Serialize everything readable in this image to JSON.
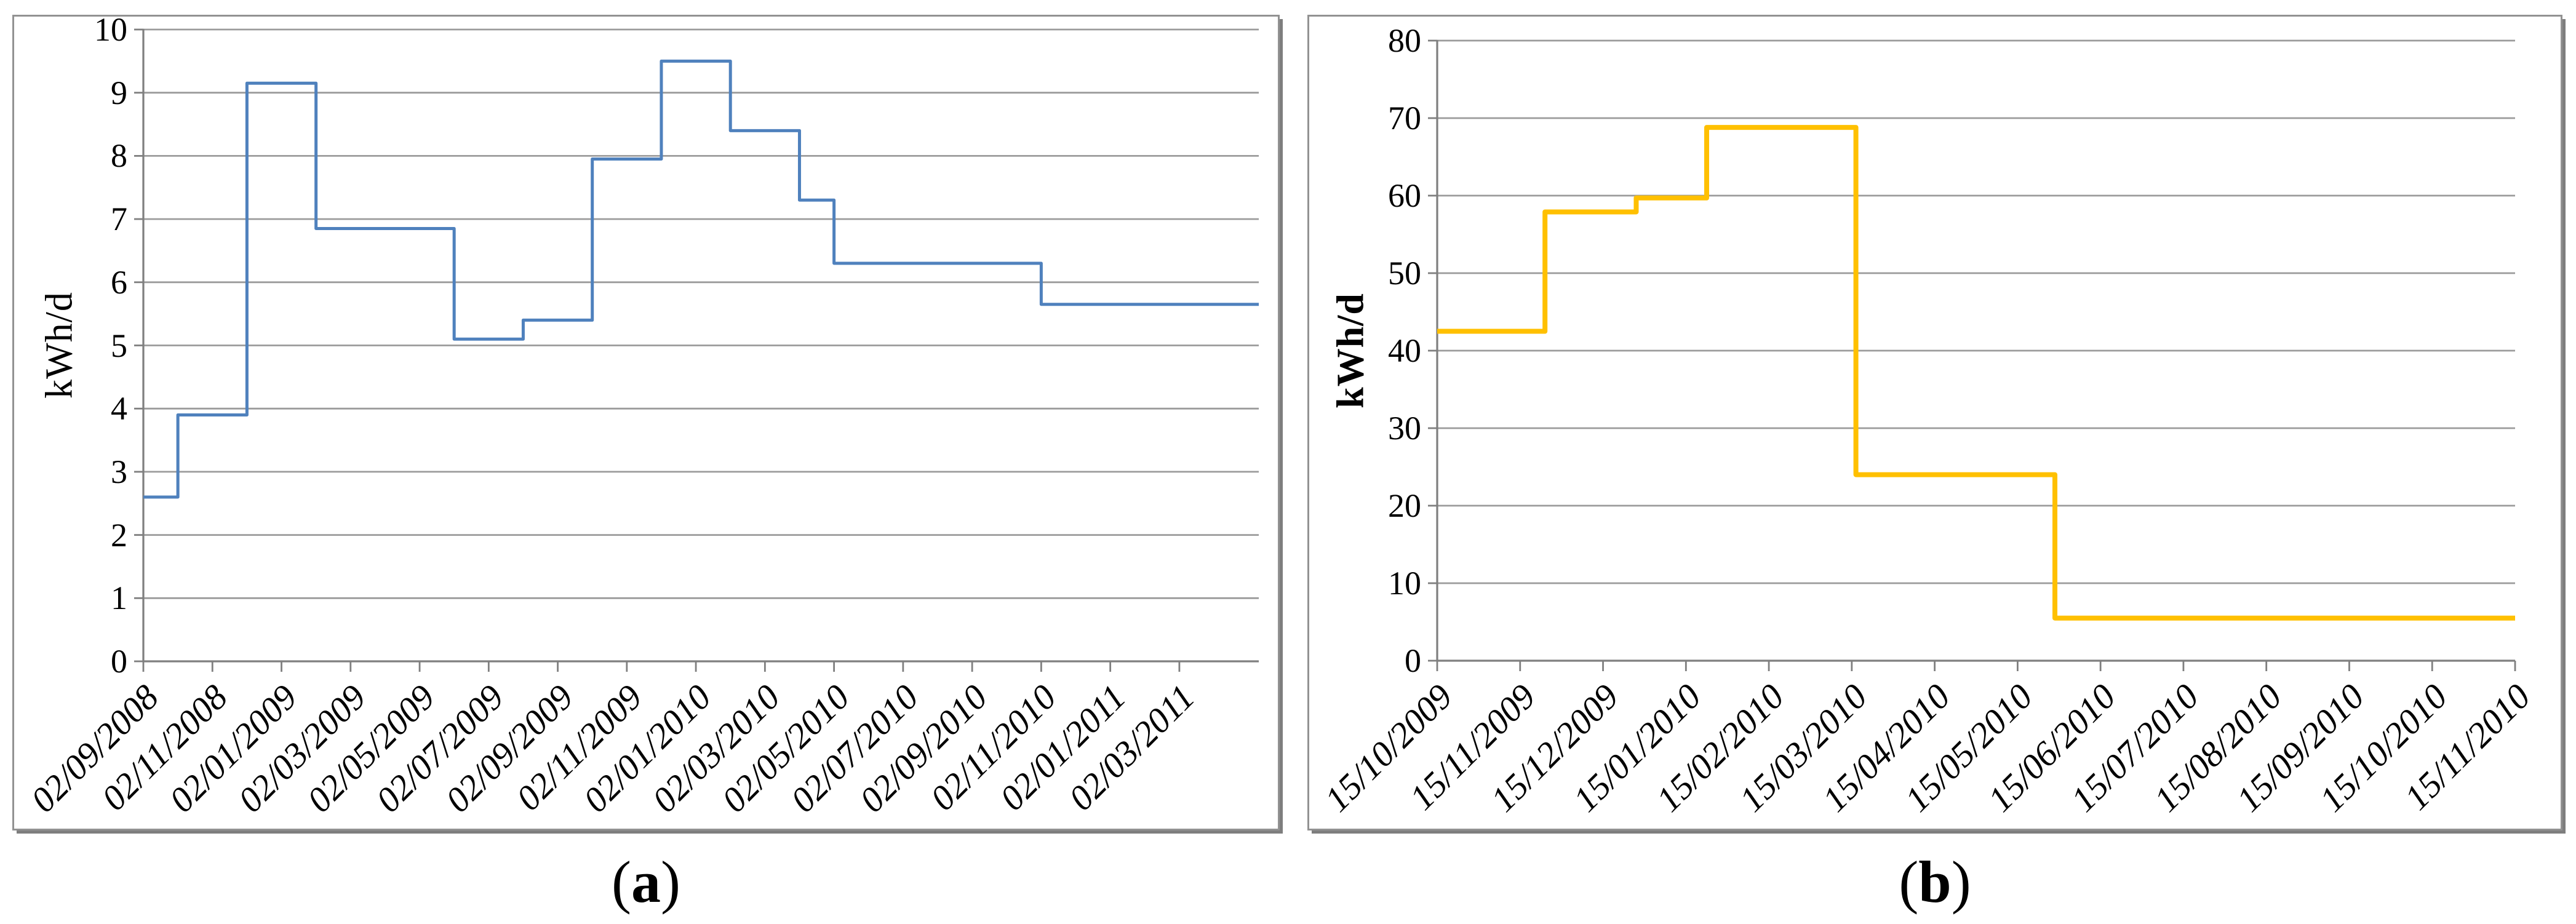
{
  "page": {
    "background": "#ffffff"
  },
  "captions": {
    "a": {
      "open": "(",
      "letter": "a",
      "close": ")"
    },
    "b": {
      "open": "(",
      "letter": "b",
      "close": ")"
    }
  },
  "chart_data": [
    {
      "id": "a",
      "type": "line",
      "subtype": "step",
      "title": "",
      "xlabel": "",
      "ylabel": "kWh/d",
      "ylabel_bold": false,
      "series_color": "#4F81BD",
      "line_width": 5,
      "grid": true,
      "grid_color": "#9b9b9b",
      "axis_color": "#7f7f7f",
      "legend": "none",
      "ylim": [
        0,
        10
      ],
      "yticks": [
        0,
        1,
        2,
        3,
        4,
        5,
        6,
        7,
        8,
        9,
        10
      ],
      "ytick_labels": [
        "0",
        "1",
        "2",
        "3",
        "4",
        "5",
        "6",
        "7",
        "8",
        "9",
        "10"
      ],
      "x_tick_labels": [
        "02/09/2008",
        "02/11/2008",
        "02/01/2009",
        "02/03/2009",
        "02/05/2009",
        "02/07/2009",
        "02/09/2009",
        "02/11/2009",
        "02/01/2010",
        "02/03/2010",
        "02/05/2010",
        "02/07/2010",
        "02/09/2010",
        "02/11/2010",
        "02/01/2011",
        "02/03/2011"
      ],
      "x_tick_months": [
        0,
        2,
        4,
        6,
        8,
        10,
        12,
        14,
        16,
        18,
        20,
        22,
        24,
        26,
        28,
        30
      ],
      "x_axis_span_months": 32.3,
      "segments": [
        {
          "start_month": 0,
          "date": "02/09/2008",
          "value": 2.6
        },
        {
          "start_month": 1,
          "date": "02/10/2008",
          "value": 3.9
        },
        {
          "start_month": 3,
          "date": "02/12/2008",
          "value": 9.15
        },
        {
          "start_month": 5,
          "date": "02/02/2009",
          "value": 6.85
        },
        {
          "start_month": 9,
          "date": "02/06/2009",
          "value": 5.1
        },
        {
          "start_month": 11,
          "date": "02/08/2009",
          "value": 5.4
        },
        {
          "start_month": 13,
          "date": "02/10/2009",
          "value": 7.95
        },
        {
          "start_month": 15,
          "date": "02/12/2009",
          "value": 9.5
        },
        {
          "start_month": 17,
          "date": "02/02/2010",
          "value": 8.4
        },
        {
          "start_month": 19,
          "date": "02/04/2010",
          "value": 7.3
        },
        {
          "start_month": 20,
          "date": "02/05/2010",
          "value": 6.3
        },
        {
          "start_month": 26,
          "date": "02/11/2010",
          "value": 5.65
        }
      ]
    },
    {
      "id": "b",
      "type": "line",
      "subtype": "step",
      "title": "",
      "xlabel": "",
      "ylabel": "kWh/d",
      "ylabel_bold": true,
      "series_color": "#FFC000",
      "line_width": 8,
      "grid": true,
      "grid_color": "#9b9b9b",
      "axis_color": "#7f7f7f",
      "legend": "none",
      "ylim": [
        0,
        80
      ],
      "yticks": [
        0,
        10,
        20,
        30,
        40,
        50,
        60,
        70,
        80
      ],
      "ytick_labels": [
        "0",
        "10",
        "20",
        "30",
        "40",
        "50",
        "60",
        "70",
        "80"
      ],
      "x_tick_labels": [
        "15/10/2009",
        "15/11/2009",
        "15/12/2009",
        "15/01/2010",
        "15/02/2010",
        "15/03/2010",
        "15/04/2010",
        "15/05/2010",
        "15/06/2010",
        "15/07/2010",
        "15/08/2010",
        "15/09/2010",
        "15/10/2010",
        "15/11/2010"
      ],
      "x_tick_months": [
        0,
        1,
        2,
        3,
        4,
        5,
        6,
        7,
        8,
        9,
        10,
        11,
        12,
        13
      ],
      "x_axis_span_months": 13.0,
      "segments": [
        {
          "start_month": 0,
          "date": "15/10/2009",
          "value": 42.5
        },
        {
          "start_month": 1.3,
          "date": "28/11/2009",
          "value": 57.9
        },
        {
          "start_month": 2.4,
          "date": "27/12/2009",
          "value": 59.7
        },
        {
          "start_month": 3.25,
          "date": "22/01/2010",
          "value": 68.8
        },
        {
          "start_month": 5.05,
          "date": "17/03/2010",
          "value": 24
        },
        {
          "start_month": 7.45,
          "date": "30/05/2010",
          "value": 5.5
        }
      ]
    }
  ]
}
